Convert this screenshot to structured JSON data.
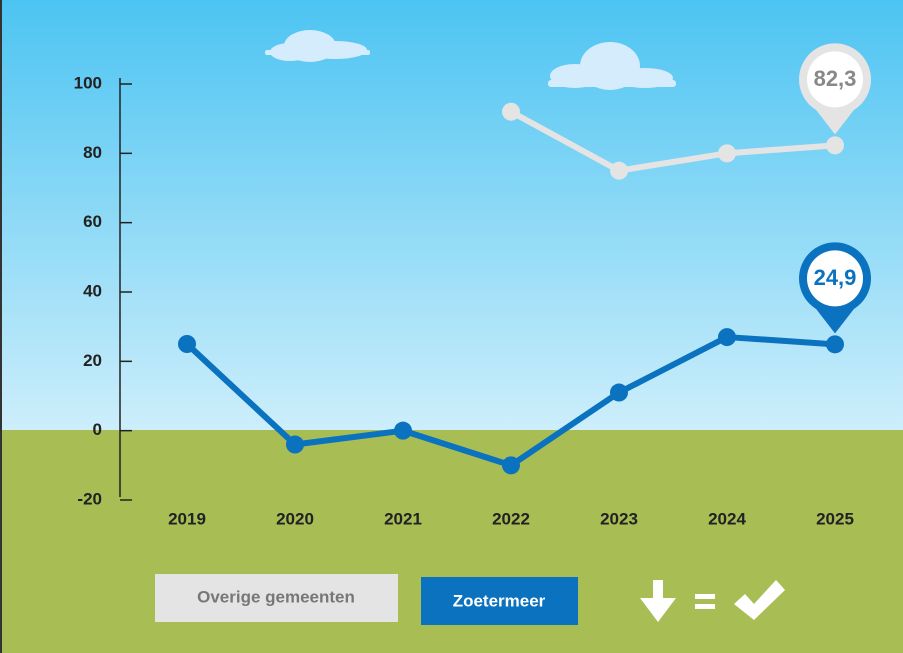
{
  "chart_data": {
    "type": "line",
    "categories": [
      "2019",
      "2020",
      "2021",
      "2022",
      "2023",
      "2024",
      "2025"
    ],
    "series": [
      {
        "name": "Overige gemeenten",
        "color": "#e4e4e4",
        "values": [
          null,
          null,
          null,
          92,
          75,
          80,
          82.3
        ],
        "value_labels": [
          null,
          null,
          null,
          null,
          null,
          null,
          "82,3"
        ]
      },
      {
        "name": "Zoetermeer",
        "color": "#0a72bf",
        "values": [
          25,
          -4,
          0,
          -10,
          11,
          27,
          24.9
        ],
        "value_labels": [
          null,
          null,
          null,
          null,
          null,
          null,
          "24,9"
        ]
      }
    ],
    "ylim": [
      -20,
      100
    ],
    "yticks": [
      -20,
      0,
      20,
      40,
      60,
      80,
      100
    ]
  }
}
